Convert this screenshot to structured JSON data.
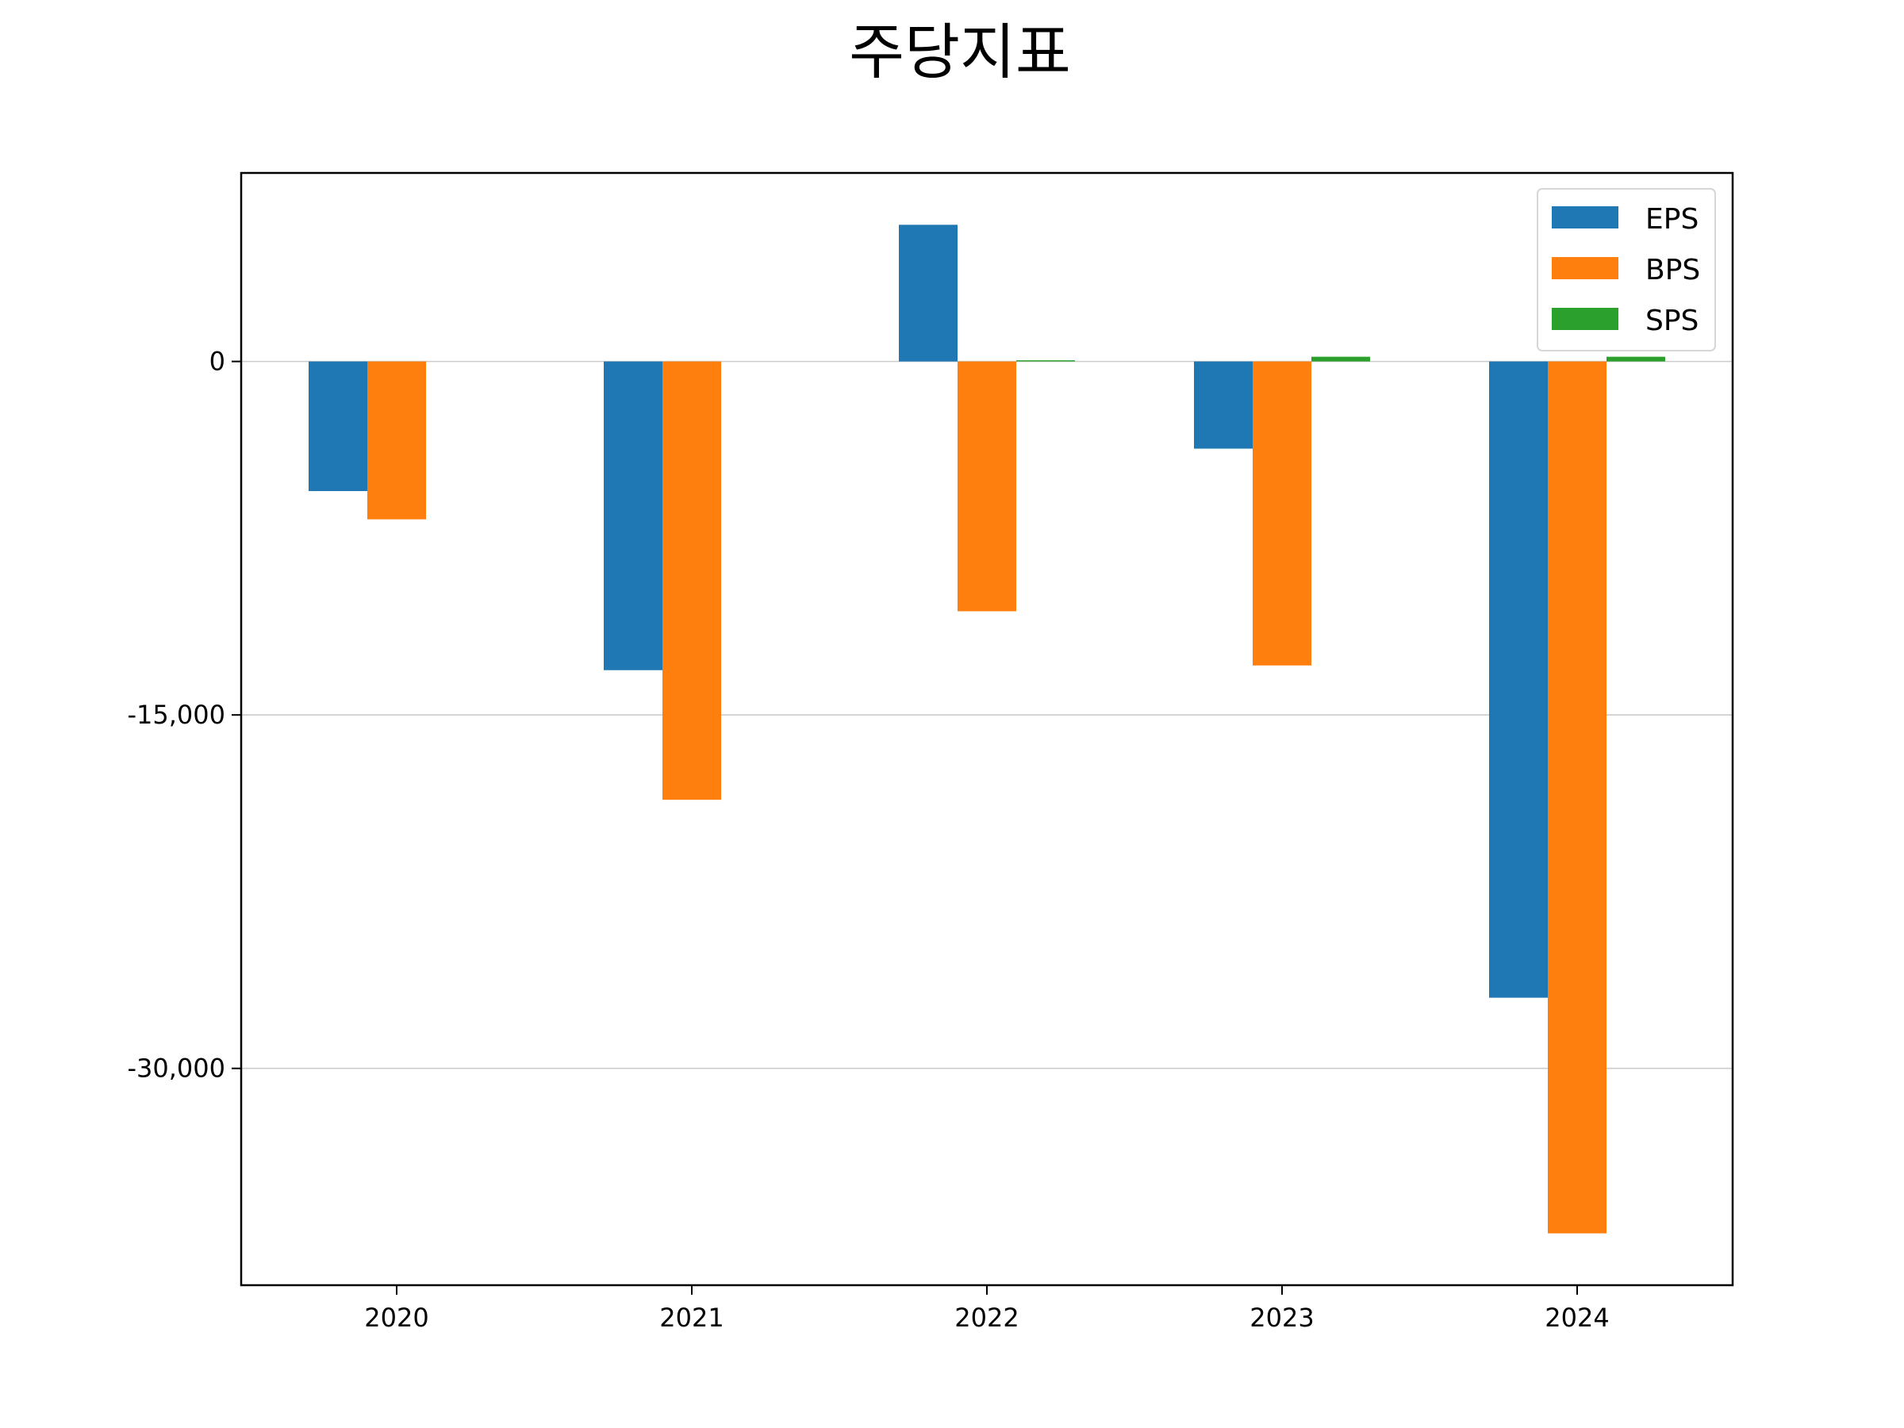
{
  "chart_data": {
    "type": "bar",
    "title": "주당지표",
    "xlabel": "",
    "ylabel": "",
    "categories": [
      "2020",
      "2021",
      "2022",
      "2023",
      "2024"
    ],
    "series": [
      {
        "name": "EPS",
        "color": "#1f77b4",
        "values": [
          -5500,
          -13100,
          5800,
          -3700,
          -27000
        ]
      },
      {
        "name": "BPS",
        "color": "#ff7f0e",
        "values": [
          -6700,
          -18600,
          -10600,
          -12900,
          -37000
        ]
      },
      {
        "name": "SPS",
        "color": "#2ca02c",
        "values": [
          0,
          0,
          50,
          200,
          200
        ]
      }
    ],
    "ylim": [
      -39200,
      8000
    ],
    "yticks": [
      0,
      -15000,
      -30000
    ],
    "ytick_labels": [
      "0",
      "-15,000",
      "-30,000"
    ],
    "grid": "y",
    "legend_position": "top-right"
  }
}
